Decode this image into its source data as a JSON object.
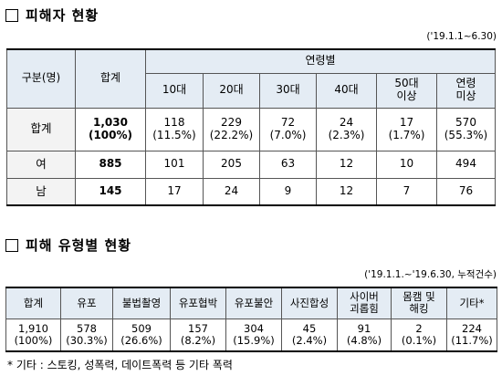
{
  "section1": {
    "title": "피해자 현황",
    "date_note": "('19.1.1~6.30)",
    "headers": {
      "category": "구분(명)",
      "total": "합계",
      "age_group": "연령별",
      "ages": [
        "10대",
        "20대",
        "30대",
        "40대",
        "50대\n이상",
        "연령\n미상"
      ]
    },
    "rows": [
      {
        "label": "합계",
        "total": "1,030\n(100%)",
        "values": [
          "118\n(11.5%)",
          "229\n(22.2%)",
          "72\n(7.0%)",
          "24\n(2.3%)",
          "17\n(1.7%)",
          "570\n(55.3%)"
        ]
      },
      {
        "label": "여",
        "total": "885",
        "values": [
          "101",
          "205",
          "63",
          "12",
          "10",
          "494"
        ]
      },
      {
        "label": "남",
        "total": "145",
        "values": [
          "17",
          "24",
          "9",
          "12",
          "7",
          "76"
        ]
      }
    ]
  },
  "section2": {
    "title": "피해 유형별 현황",
    "date_note": "('19.1.1.~'19.6.30, 누적건수)",
    "headers": [
      "합계",
      "유포",
      "불법촬영",
      "유포협박",
      "유포불안",
      "사진합성",
      "사이버\n괴롭힘",
      "몸캠 및\n해킹",
      "기타*"
    ],
    "values": [
      "1,910\n(100%)",
      "578\n(30.3%)",
      "509\n(26.6%)",
      "157\n(8.2%)",
      "304\n(15.9%)",
      "45\n(2.4%)",
      "91\n(4.8%)",
      "2\n(0.1%)",
      "224\n(11.7%)"
    ]
  },
  "footnote": "* 기타 : 스토킹, 성폭력, 데이트폭력 등 기타 폭력"
}
